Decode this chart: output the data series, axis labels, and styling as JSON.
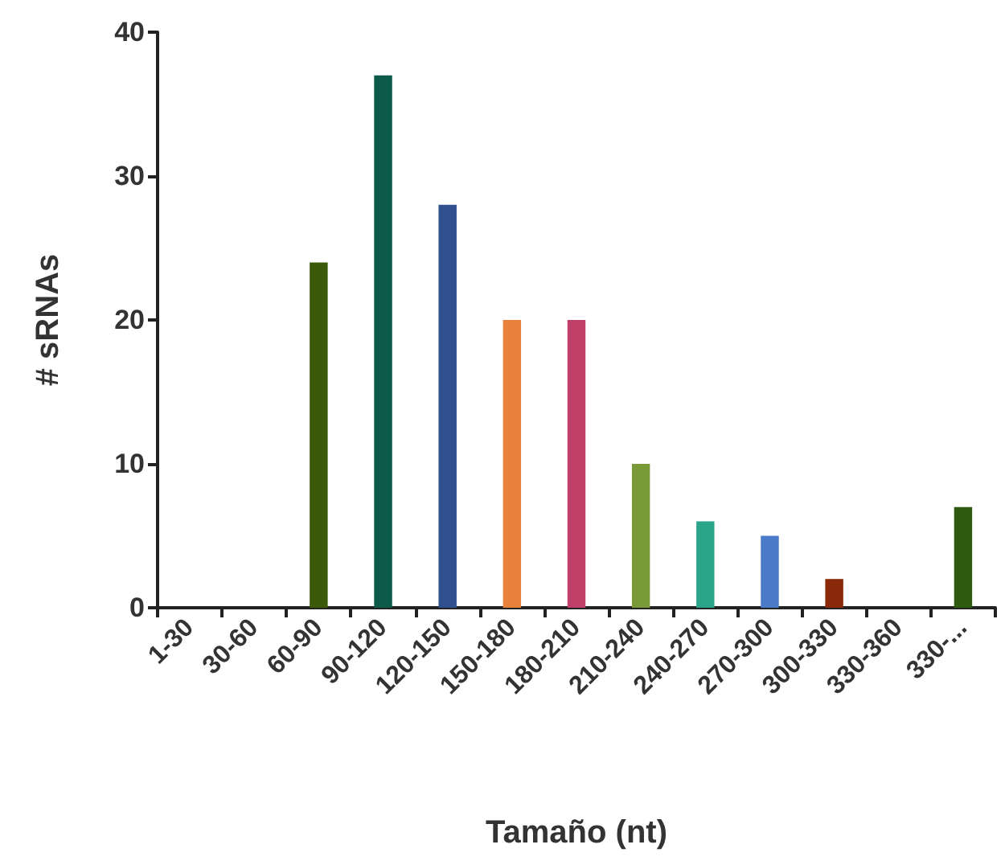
{
  "chart_data": {
    "type": "bar",
    "xlabel": "Tamaño (nt)",
    "ylabel": "# sRNAs",
    "categories": [
      "1-30",
      "30-60",
      "60-90",
      "90-120",
      "120-150",
      "150-180",
      "180-210",
      "210-240",
      "240-270",
      "270-300",
      "300-330",
      "330-360",
      "330-..."
    ],
    "values": [
      0,
      0,
      24,
      37,
      28,
      20,
      20,
      10,
      6,
      5,
      2,
      0,
      7
    ],
    "colors": [
      "#3a5a0a",
      "#0e5a4a",
      "#3a5a0a",
      "#0e5a4a",
      "#2f4f8f",
      "#e8823a",
      "#c0406a",
      "#7a9a3a",
      "#2aa58a",
      "#4a7ac8",
      "#8a2a0a",
      "#2e5a10",
      "#2e5a10"
    ],
    "ylim": [
      0,
      40
    ],
    "yticks": [
      0,
      10,
      20,
      30,
      40
    ],
    "grid": false
  }
}
